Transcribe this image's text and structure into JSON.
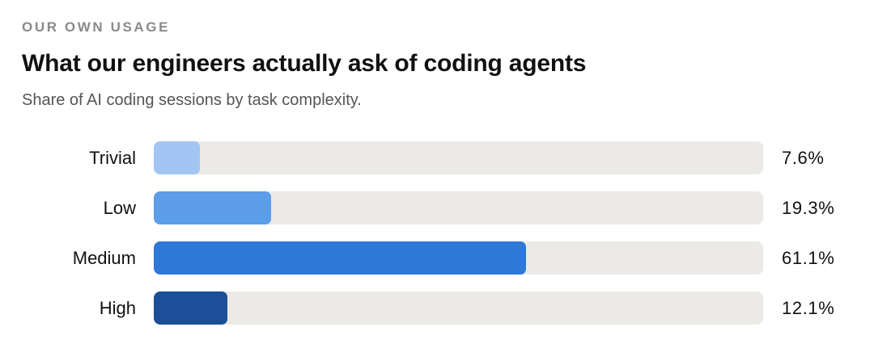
{
  "header": {
    "eyebrow": "OUR OWN USAGE",
    "title": "What our engineers actually ask of coding agents",
    "subtitle": "Share of AI coding sessions by task complexity."
  },
  "chart_data": {
    "type": "bar",
    "orientation": "horizontal",
    "title": "What our engineers actually ask of coding agents",
    "subtitle": "Share of AI coding sessions by task complexity.",
    "categories": [
      "Trivial",
      "Low",
      "Medium",
      "High"
    ],
    "values": [
      7.6,
      19.3,
      61.1,
      12.1
    ],
    "value_labels": [
      "7.6%",
      "19.3%",
      "61.1%",
      "12.1%"
    ],
    "unit": "%",
    "xlim": [
      0,
      100
    ],
    "grid": false,
    "legend": "none",
    "colors": [
      "#a3c5f3",
      "#5b9de8",
      "#2e78d8",
      "#1b4f98"
    ],
    "track_color": "#ebeae7"
  }
}
